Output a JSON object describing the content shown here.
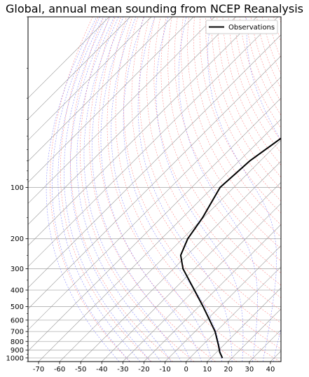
{
  "chart_data": {
    "type": "line",
    "subtype": "skew-T log-P thermodynamic diagram",
    "title": "Global, annual mean sounding from NCEP Reanalysis",
    "xlabel": "",
    "ylabel": "",
    "x_axis_units": "temperature (°C)",
    "y_axis_units": "pressure (hPa)",
    "xlim": [
      -75,
      45
    ],
    "ylim": [
      1050,
      10
    ],
    "y_scale": "log",
    "x_ticks": [
      -70,
      -60,
      -50,
      -40,
      -30,
      -20,
      -10,
      0,
      10,
      20,
      30,
      40
    ],
    "y_ticks": [
      100,
      200,
      300,
      400,
      500,
      600,
      700,
      800,
      900,
      1000
    ],
    "grid": true,
    "legend_position": "top-right",
    "background_lines": {
      "isotherms": {
        "color": "#999999",
        "style": "solid"
      },
      "dry_adiabats": {
        "color": "#ff6666",
        "style": "dashed"
      },
      "moist_adiabats": {
        "color": "#6666ff",
        "style": "dashed"
      }
    },
    "series": [
      {
        "name": "Observations",
        "color": "#000000",
        "pressure": [
          1000,
          925,
          850,
          700,
          600,
          500,
          400,
          300,
          250,
          200,
          150,
          100,
          70,
          50,
          30,
          20,
          10
        ],
        "temperature": [
          15.5,
          11.5,
          8.0,
          -0.5,
          -8.5,
          -18.0,
          -30.0,
          -45.5,
          -53.0,
          -57.5,
          -60.5,
          -66.5,
          -65.0,
          -60.5,
          -56.5,
          -53.0,
          -45.0
        ]
      }
    ]
  }
}
